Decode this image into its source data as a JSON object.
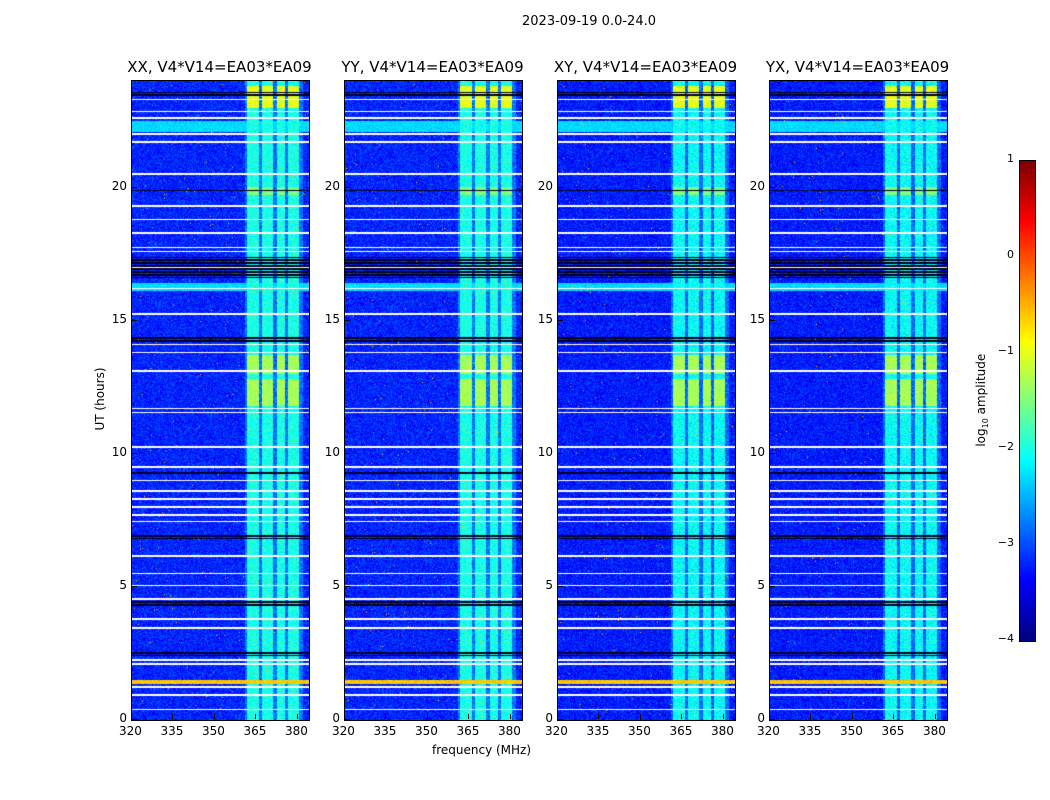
{
  "chart_data": {
    "type": "heatmap",
    "title": "2023-09-19 0.0-24.0",
    "xlabel": "frequency (MHz)",
    "ylabel": "UT (hours)",
    "xlim": [
      320,
      384
    ],
    "ylim": [
      0,
      24
    ],
    "xticks": [
      320,
      335,
      350,
      365,
      380
    ],
    "yticks": [
      0,
      5,
      10,
      15,
      20
    ],
    "panels": [
      {
        "title": "XX, V4*V14=EA03*EA09"
      },
      {
        "title": "YY, V4*V14=EA03*EA09"
      },
      {
        "title": "XY, V4*V14=EA03*EA09"
      },
      {
        "title": "YX, V4*V14=EA03*EA09"
      }
    ],
    "colorbar": {
      "label_prefix": "log",
      "label_sub": "10",
      "label_suffix": " amplitude",
      "colormap": "jet",
      "range": [
        -4,
        1
      ],
      "ticks": [
        1,
        0,
        -1,
        -2,
        -3,
        -4
      ]
    },
    "background_log_amplitude": -3.2,
    "rfi_band_mhz": [
      361,
      382
    ],
    "rfi_columns_mhz": [
      [
        361.5,
        366
      ],
      [
        367,
        371
      ],
      [
        372.5,
        375.5
      ],
      [
        376.5,
        380.5
      ]
    ],
    "rfi_log_amplitude": -2.0,
    "bright_intervals_ut": [
      {
        "ut": [
          11.8,
          12.8
        ],
        "log_amplitude": -1.3,
        "band": "rfi"
      },
      {
        "ut": [
          13.0,
          13.7
        ],
        "log_amplitude": -1.3,
        "band": "rfi"
      },
      {
        "ut": [
          1.35,
          1.5
        ],
        "log_amplitude": -0.6,
        "band": "all"
      },
      {
        "ut": [
          22.1,
          22.5
        ],
        "log_amplitude": -2.3,
        "band": "all"
      },
      {
        "ut": [
          16.1,
          16.4
        ],
        "log_amplitude": -2.3,
        "band": "all"
      },
      {
        "ut": [
          23.0,
          23.8
        ],
        "log_amplitude": -1.0,
        "band": "rfi"
      },
      {
        "ut": [
          19.7,
          20.0
        ],
        "log_amplitude": -1.5,
        "band": "rfi"
      }
    ],
    "flagged_ut_hours": [
      0.4,
      0.95,
      1.25,
      2.1,
      2.25,
      3.45,
      3.8,
      4.55,
      5.05,
      5.5,
      6.15,
      7.45,
      7.7,
      8.0,
      8.3,
      8.6,
      9.0,
      9.5,
      10.25,
      11.55,
      11.7,
      13.1,
      13.8,
      14.1,
      15.25,
      16.2,
      17.0,
      17.6,
      17.75,
      18.3,
      18.8,
      19.3,
      20.5,
      21.7,
      22.0,
      22.6,
      22.85,
      23.3
    ],
    "zero_ut_intervals": [
      [
        2.4,
        2.6
      ],
      [
        4.3,
        4.5
      ],
      [
        6.8,
        6.95
      ],
      [
        9.2,
        9.35
      ],
      [
        14.2,
        14.4
      ],
      [
        16.6,
        17.4
      ],
      [
        19.85,
        19.95
      ],
      [
        23.4,
        23.6
      ]
    ]
  }
}
